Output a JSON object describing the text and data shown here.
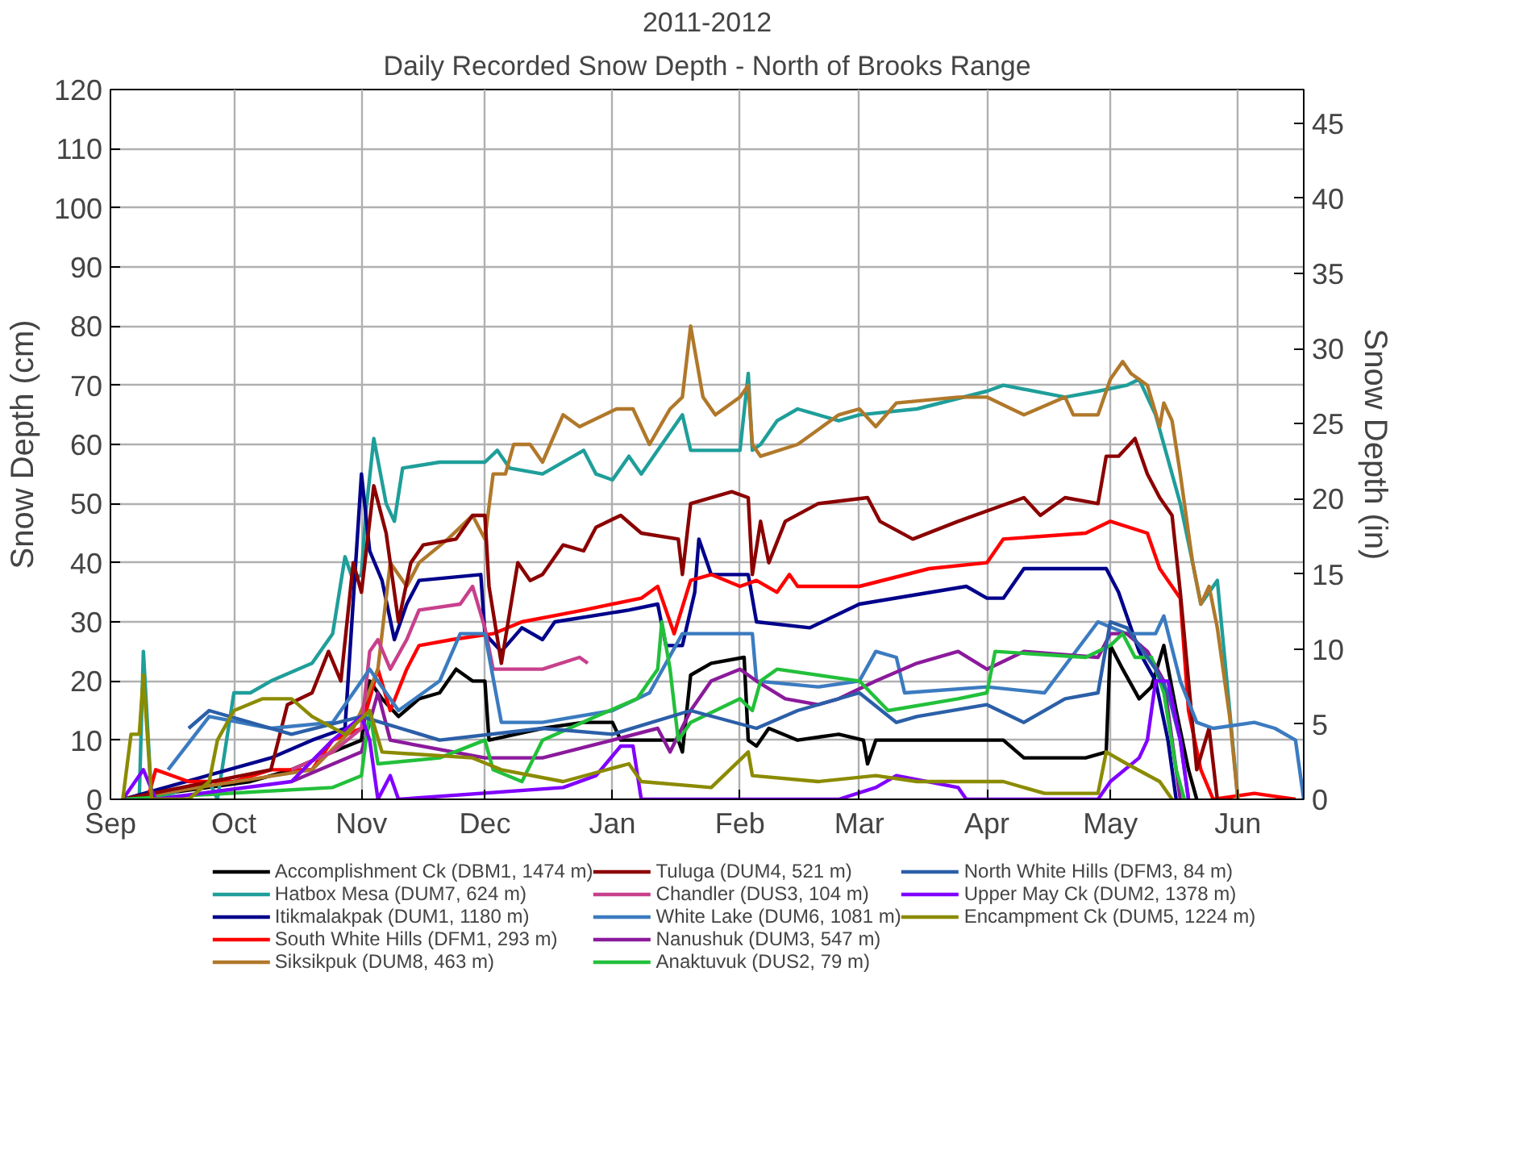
{
  "chart_data": {
    "type": "line",
    "title": "2011-2012",
    "subtitle": "Daily Recorded Snow Depth - North of Brooks Range",
    "ylabel": "Snow Depth (cm)",
    "y2label": "Snow Depth (in)",
    "xlim": [
      "2011-09-01",
      "2012-06-17"
    ],
    "xticks": [
      {
        "value": "2011-09-01",
        "label": "Sep"
      },
      {
        "value": "2011-10-01",
        "label": "Oct"
      },
      {
        "value": "2011-11-01",
        "label": "Nov"
      },
      {
        "value": "2011-12-01",
        "label": "Dec"
      },
      {
        "value": "2012-01-01",
        "label": "Jan"
      },
      {
        "value": "2012-02-01",
        "label": "Feb"
      },
      {
        "value": "2012-03-01",
        "label": "Mar"
      },
      {
        "value": "2012-04-01",
        "label": "Apr"
      },
      {
        "value": "2012-05-01",
        "label": "May"
      },
      {
        "value": "2012-06-01",
        "label": "Jun"
      }
    ],
    "ylim": [
      0,
      120
    ],
    "yticks": [
      0,
      10,
      20,
      30,
      40,
      50,
      60,
      70,
      80,
      90,
      100,
      110,
      120
    ],
    "y2lim": [
      0,
      47.24
    ],
    "y2ticks": [
      0,
      5,
      10,
      15,
      20,
      25,
      30,
      35,
      40,
      45
    ],
    "grid": true,
    "legend": "bottom",
    "line_style": "solid",
    "series": [
      {
        "name": "Accomplishment Ck (DBM1, 1474 m)",
        "color": "#000000",
        "x": [
          "2011-09-04",
          "2011-10-05",
          "2011-10-15",
          "2011-10-25",
          "2011-11-01",
          "2011-11-03",
          "2011-11-06",
          "2011-11-10",
          "2011-11-15",
          "2011-11-20",
          "2011-11-24",
          "2011-11-28",
          "2011-12-01",
          "2011-12-02",
          "2011-12-15",
          "2011-12-25",
          "2012-01-01",
          "2012-01-03",
          "2012-01-10",
          "2012-01-17",
          "2012-01-18",
          "2012-01-20",
          "2012-01-25",
          "2012-02-02",
          "2012-02-03",
          "2012-02-05",
          "2012-02-08",
          "2012-02-15",
          "2012-02-25",
          "2012-03-02",
          "2012-03-03",
          "2012-03-05",
          "2012-03-25",
          "2012-04-05",
          "2012-04-10",
          "2012-04-25",
          "2012-04-30",
          "2012-05-01",
          "2012-05-04",
          "2012-05-08",
          "2012-05-11",
          "2012-05-14",
          "2012-05-17",
          "2012-05-20",
          "2012-05-22"
        ],
        "values": [
          0,
          3,
          5,
          8,
          10,
          20,
          17,
          14,
          17,
          18,
          22,
          20,
          20,
          10,
          12,
          13,
          13,
          10,
          10,
          10,
          8,
          21,
          23,
          24,
          10,
          9,
          12,
          10,
          11,
          10,
          6,
          10,
          10,
          10,
          7,
          7,
          8,
          26,
          22,
          17,
          19,
          26,
          15,
          5,
          0
        ]
      },
      {
        "name": "Hatbox Mesa (DUM7, 624 m)",
        "color": "#1f9e9a",
        "x": [
          "2011-09-04",
          "2011-09-08",
          "2011-09-09",
          "2011-09-11",
          "2011-09-20",
          "2011-09-25",
          "2011-09-27",
          "2011-10-01",
          "2011-10-05",
          "2011-10-10",
          "2011-10-20",
          "2011-10-25",
          "2011-10-28",
          "2011-10-30",
          "2011-11-01",
          "2011-11-02",
          "2011-11-04",
          "2011-11-07",
          "2011-11-09",
          "2011-11-11",
          "2011-11-20",
          "2011-12-01",
          "2011-12-04",
          "2011-12-07",
          "2011-12-15",
          "2011-12-25",
          "2011-12-28",
          "2012-01-01",
          "2012-01-05",
          "2012-01-08",
          "2012-01-12",
          "2012-01-18",
          "2012-01-20",
          "2012-02-01",
          "2012-02-03",
          "2012-02-04",
          "2012-02-06",
          "2012-02-10",
          "2012-02-15",
          "2012-02-25",
          "2012-03-01",
          "2012-03-15",
          "2012-04-01",
          "2012-04-05",
          "2012-04-20",
          "2012-04-28",
          "2012-05-05",
          "2012-05-08",
          "2012-05-12",
          "2012-05-16",
          "2012-05-18",
          "2012-05-21",
          "2012-05-23",
          "2012-05-27",
          "2012-05-30",
          "2012-06-01"
        ],
        "values": [
          0,
          0,
          25,
          0,
          2,
          3,
          0,
          18,
          18,
          20,
          23,
          28,
          41,
          37,
          38,
          48,
          61,
          50,
          47,
          56,
          57,
          57,
          59,
          56,
          55,
          59,
          55,
          54,
          58,
          55,
          59,
          65,
          59,
          59,
          72,
          59,
          60,
          64,
          66,
          64,
          65,
          66,
          69,
          70,
          68,
          69,
          70,
          71,
          65,
          55,
          50,
          40,
          33,
          37,
          15,
          0
        ]
      },
      {
        "name": "Itikmalakpak (DUM1, 1180 m)",
        "color": "#00008b",
        "x": [
          "2011-09-04",
          "2011-10-10",
          "2011-10-20",
          "2011-10-28",
          "2011-11-01",
          "2011-11-03",
          "2011-11-06",
          "2011-11-09",
          "2011-11-12",
          "2011-11-15",
          "2011-11-30",
          "2011-12-01",
          "2011-12-05",
          "2011-12-10",
          "2011-12-15",
          "2011-12-18",
          "2012-01-05",
          "2012-01-12",
          "2012-01-14",
          "2012-01-18",
          "2012-01-21",
          "2012-01-22",
          "2012-01-25",
          "2012-02-03",
          "2012-02-05",
          "2012-02-18",
          "2012-03-01",
          "2012-03-27",
          "2012-04-01",
          "2012-04-05",
          "2012-04-10",
          "2012-04-30",
          "2012-05-03",
          "2012-05-08",
          "2012-05-12",
          "2012-05-15",
          "2012-05-17"
        ],
        "values": [
          0,
          7,
          10,
          12,
          55,
          42,
          37,
          27,
          33,
          37,
          38,
          28,
          25,
          29,
          27,
          30,
          32,
          33,
          26,
          26,
          35,
          44,
          38,
          38,
          30,
          29,
          33,
          36,
          34,
          34,
          39,
          39,
          35,
          25,
          20,
          10,
          0
        ]
      },
      {
        "name": "South White Hills (DFM1, 293 m)",
        "color": "#ff0000",
        "x": [
          "2011-09-04",
          "2011-09-10",
          "2011-09-12",
          "2011-09-20",
          "2011-10-01",
          "2011-10-10",
          "2011-10-20",
          "2011-10-25",
          "2011-11-01",
          "2011-11-05",
          "2011-11-08",
          "2011-11-12",
          "2011-11-15",
          "2011-11-23",
          "2011-12-03",
          "2011-12-10",
          "2011-12-25",
          "2012-01-08",
          "2012-01-12",
          "2012-01-16",
          "2012-01-20",
          "2012-01-25",
          "2012-02-01",
          "2012-02-05",
          "2012-02-10",
          "2012-02-13",
          "2012-02-15",
          "2012-03-01",
          "2012-03-18",
          "2012-04-01",
          "2012-04-05",
          "2012-04-25",
          "2012-05-01",
          "2012-05-10",
          "2012-05-13",
          "2012-05-18",
          "2012-05-20",
          "2012-05-23",
          "2012-05-26",
          "2012-06-05",
          "2012-06-10",
          "2012-06-15"
        ],
        "values": [
          0,
          0,
          5,
          3,
          3,
          5,
          5,
          10,
          12,
          22,
          15,
          22,
          26,
          27,
          28,
          30,
          32,
          34,
          36,
          28,
          37,
          38,
          36,
          37,
          35,
          38,
          36,
          36,
          39,
          40,
          44,
          45,
          47,
          45,
          39,
          34,
          15,
          5,
          0,
          1,
          0.5,
          0
        ]
      },
      {
        "name": "Siksikpuk (DUM8, 463 m)",
        "color": "#b0782a",
        "x": [
          "2011-09-04",
          "2011-10-20",
          "2011-10-30",
          "2011-11-01",
          "2011-11-05",
          "2011-11-08",
          "2011-11-12",
          "2011-11-15",
          "2011-11-22",
          "2011-11-28",
          "2011-12-01",
          "2011-12-03",
          "2011-12-06",
          "2011-12-08",
          "2011-12-12",
          "2011-12-15",
          "2011-12-20",
          "2011-12-24",
          "2012-01-02",
          "2012-01-06",
          "2012-01-10",
          "2012-01-15",
          "2012-01-18",
          "2012-01-20",
          "2012-01-23",
          "2012-01-26",
          "2012-02-01",
          "2012-02-03",
          "2012-02-04",
          "2012-02-06",
          "2012-02-15",
          "2012-02-25",
          "2012-03-01",
          "2012-03-05",
          "2012-03-10",
          "2012-03-25",
          "2012-04-01",
          "2012-04-10",
          "2012-04-20",
          "2012-04-22",
          "2012-04-28",
          "2012-05-01",
          "2012-05-04",
          "2012-05-06",
          "2012-05-10",
          "2012-05-13",
          "2012-05-14",
          "2012-05-16",
          "2012-05-18",
          "2012-05-21",
          "2012-05-23",
          "2012-05-25",
          "2012-05-27",
          "2012-05-30",
          "2012-06-01"
        ],
        "values": [
          0,
          5,
          12,
          15,
          22,
          40,
          36,
          40,
          44,
          48,
          44,
          55,
          55,
          60,
          60,
          57,
          65,
          63,
          66,
          66,
          60,
          66,
          68,
          80,
          68,
          65,
          68,
          70,
          60,
          58,
          60,
          65,
          66,
          63,
          67,
          68,
          68,
          65,
          68,
          65,
          65,
          71,
          74,
          72,
          70,
          63,
          67,
          64,
          55,
          40,
          33,
          36,
          29,
          14,
          0
        ]
      },
      {
        "name": "Tuluga (DUM4, 521 m)",
        "color": "#8b0000",
        "x": [
          "2011-09-04",
          "2011-10-10",
          "2011-10-14",
          "2011-10-20",
          "2011-10-24",
          "2011-10-27",
          "2011-10-30",
          "2011-11-01",
          "2011-11-04",
          "2011-11-07",
          "2011-11-10",
          "2011-11-13",
          "2011-11-16",
          "2011-11-24",
          "2011-11-28",
          "2011-12-01",
          "2011-12-02",
          "2011-12-05",
          "2011-12-09",
          "2011-12-12",
          "2011-12-15",
          "2011-12-20",
          "2011-12-25",
          "2011-12-28",
          "2012-01-03",
          "2012-01-08",
          "2012-01-17",
          "2012-01-18",
          "2012-01-20",
          "2012-01-30",
          "2012-02-03",
          "2012-02-04",
          "2012-02-06",
          "2012-02-08",
          "2012-02-12",
          "2012-02-20",
          "2012-03-03",
          "2012-03-06",
          "2012-03-14",
          "2012-03-25",
          "2012-04-10",
          "2012-04-14",
          "2012-04-20",
          "2012-04-28",
          "2012-04-30",
          "2012-05-03",
          "2012-05-07",
          "2012-05-10",
          "2012-05-13",
          "2012-05-16",
          "2012-05-18",
          "2012-05-20",
          "2012-05-22",
          "2012-05-25",
          "2012-05-27"
        ],
        "values": [
          0,
          5,
          16,
          18,
          25,
          20,
          40,
          35,
          53,
          45,
          30,
          40,
          43,
          44,
          48,
          48,
          36,
          23,
          40,
          37,
          38,
          43,
          42,
          46,
          48,
          45,
          44,
          38,
          50,
          52,
          51,
          38,
          47,
          40,
          47,
          50,
          51,
          47,
          44,
          47,
          51,
          48,
          51,
          50,
          58,
          58,
          61,
          55,
          51,
          48,
          35,
          20,
          5,
          12,
          0
        ]
      },
      {
        "name": "Chandler (DUS3, 104 m)",
        "color": "#c8408c",
        "x": [
          "2011-10-15",
          "2011-10-25",
          "2011-11-01",
          "2011-11-03",
          "2011-11-05",
          "2011-11-08",
          "2011-11-12",
          "2011-11-15",
          "2011-11-25",
          "2011-11-28",
          "2011-12-01",
          "2011-12-03",
          "2011-12-15",
          "2011-12-24",
          "2011-12-26"
        ],
        "values": [
          5,
          8,
          12,
          25,
          27,
          22,
          27,
          32,
          33,
          36,
          29,
          22,
          22,
          24,
          23
        ]
      },
      {
        "name": "White Lake (DUM6, 1081 m)",
        "color": "#3b7bc0",
        "x": [
          "2011-09-15",
          "2011-09-25",
          "2011-10-10",
          "2011-10-25",
          "2011-11-03",
          "2011-11-10",
          "2011-11-20",
          "2011-11-25",
          "2011-12-01",
          "2011-12-05",
          "2011-12-15",
          "2012-01-01",
          "2012-01-10",
          "2012-01-18",
          "2012-02-04",
          "2012-02-05",
          "2012-02-20",
          "2012-03-01",
          "2012-03-05",
          "2012-03-10",
          "2012-03-12",
          "2012-04-01",
          "2012-04-15",
          "2012-04-28",
          "2012-05-05",
          "2012-05-12",
          "2012-05-14",
          "2012-05-18",
          "2012-05-22",
          "2012-05-26",
          "2012-06-05",
          "2012-06-10",
          "2012-06-15",
          "2012-06-17"
        ],
        "values": [
          5,
          14,
          12,
          13,
          22,
          15,
          20,
          28,
          28,
          13,
          13,
          15,
          18,
          28,
          28,
          20,
          19,
          20,
          25,
          24,
          18,
          19,
          18,
          30,
          28,
          28,
          31,
          20,
          13,
          12,
          13,
          12,
          10,
          0
        ]
      },
      {
        "name": "Nanushuk (DUM3, 547 m)",
        "color": "#8b1a9b",
        "x": [
          "2011-10-15",
          "2011-11-01",
          "2011-11-05",
          "2011-11-08",
          "2011-12-01",
          "2011-12-15",
          "2012-01-01",
          "2012-01-12",
          "2012-01-15",
          "2012-01-20",
          "2012-01-25",
          "2012-02-01",
          "2012-02-05",
          "2012-02-12",
          "2012-02-20",
          "2012-02-25",
          "2012-03-05",
          "2012-03-15",
          "2012-03-25",
          "2012-04-01",
          "2012-04-10",
          "2012-04-28",
          "2012-05-01",
          "2012-05-05",
          "2012-05-10",
          "2012-05-14",
          "2012-05-16",
          "2012-05-18"
        ],
        "values": [
          3,
          8,
          18,
          10,
          7,
          7,
          10,
          12,
          8,
          15,
          20,
          22,
          20,
          17,
          16,
          17,
          20,
          23,
          25,
          22,
          25,
          24,
          28,
          28,
          25,
          20,
          10,
          0
        ]
      },
      {
        "name": "Anaktuvuk (DUS2, 79 m)",
        "color": "#22c03a",
        "x": [
          "2011-09-04",
          "2011-10-25",
          "2011-11-01",
          "2011-11-03",
          "2011-11-05",
          "2011-11-20",
          "2011-12-01",
          "2011-12-03",
          "2011-12-10",
          "2011-12-15",
          "2011-12-28",
          "2012-01-07",
          "2012-01-10",
          "2012-01-12",
          "2012-01-13",
          "2012-01-15",
          "2012-01-17",
          "2012-01-20",
          "2012-02-01",
          "2012-02-04",
          "2012-02-06",
          "2012-02-10",
          "2012-03-01",
          "2012-03-08",
          "2012-03-25",
          "2012-04-01",
          "2012-04-03",
          "2012-04-25",
          "2012-05-01",
          "2012-05-04",
          "2012-05-07",
          "2012-05-11",
          "2012-05-14",
          "2012-05-17",
          "2012-05-19"
        ],
        "values": [
          0,
          2,
          4,
          15,
          6,
          7,
          10,
          5,
          3,
          10,
          14,
          17,
          20,
          22,
          30,
          22,
          10,
          13,
          17,
          15,
          20,
          22,
          20,
          15,
          17,
          18,
          25,
          24,
          26,
          28,
          24,
          24,
          18,
          5,
          0
        ]
      },
      {
        "name": "North White Hills (DFM3, 84 m)",
        "color": "#2b5fa8",
        "x": [
          "2011-09-20",
          "2011-09-25",
          "2011-10-15",
          "2011-11-01",
          "2011-11-20",
          "2011-12-15",
          "2012-01-01",
          "2012-01-20",
          "2012-02-05",
          "2012-02-15",
          "2012-03-01",
          "2012-03-10",
          "2012-03-15",
          "2012-04-01",
          "2012-04-10",
          "2012-04-20",
          "2012-04-28",
          "2012-05-01",
          "2012-05-05",
          "2012-05-12",
          "2012-05-15",
          "2012-05-18",
          "2012-05-20"
        ],
        "values": [
          12,
          15,
          11,
          14,
          10,
          12,
          11,
          15,
          12,
          15,
          18,
          13,
          14,
          16,
          13,
          17,
          18,
          30,
          29,
          22,
          18,
          10,
          0
        ]
      },
      {
        "name": "Upper May Ck (DUM2, 1378 m)",
        "color": "#8000ff",
        "x": [
          "2011-09-04",
          "2011-09-09",
          "2011-09-12",
          "2011-10-15",
          "2011-10-25",
          "2011-11-01",
          "2011-11-03",
          "2011-11-05",
          "2011-11-08",
          "2011-11-10",
          "2011-12-20",
          "2011-12-28",
          "2012-01-03",
          "2012-01-06",
          "2012-01-08",
          "2012-02-25",
          "2012-03-05",
          "2012-03-10",
          "2012-03-25",
          "2012-03-27",
          "2012-04-28",
          "2012-05-01",
          "2012-05-08",
          "2012-05-10",
          "2012-05-12",
          "2012-05-15",
          "2012-05-18",
          "2012-05-20"
        ],
        "values": [
          0,
          5,
          0,
          3,
          10,
          14,
          10,
          0,
          4,
          0,
          2,
          4,
          9,
          9,
          0,
          0,
          2,
          4,
          2,
          0,
          0,
          3,
          7,
          10,
          20,
          20,
          10,
          0
        ]
      },
      {
        "name": "Encampment Ck (DUM5, 1224 m)",
        "color": "#8b8b00",
        "x": [
          "2011-09-04",
          "2011-09-06",
          "2011-09-08",
          "2011-09-09",
          "2011-09-11",
          "2011-09-20",
          "2011-09-25",
          "2011-09-27",
          "2011-10-01",
          "2011-10-08",
          "2011-10-15",
          "2011-10-20",
          "2011-10-28",
          "2011-11-03",
          "2011-11-06",
          "2011-11-28",
          "2011-12-05",
          "2011-12-20",
          "2012-01-05",
          "2012-01-08",
          "2012-01-25",
          "2012-02-03",
          "2012-02-04",
          "2012-02-20",
          "2012-03-05",
          "2012-03-15",
          "2012-04-05",
          "2012-04-15",
          "2012-04-28",
          "2012-04-30",
          "2012-05-05",
          "2012-05-13",
          "2012-05-16"
        ],
        "values": [
          0,
          11,
          11,
          21,
          0,
          0,
          3,
          10,
          15,
          17,
          17,
          14,
          11,
          15,
          8,
          7,
          5,
          3,
          6,
          3,
          2,
          8,
          4,
          3,
          4,
          3,
          3,
          1,
          1,
          8,
          6,
          3,
          0
        ]
      }
    ]
  }
}
